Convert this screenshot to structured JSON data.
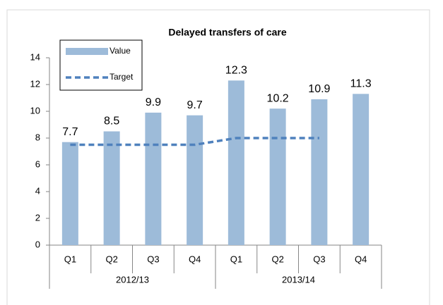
{
  "chart_data": {
    "type": "bar",
    "title": "Delayed transfers of care",
    "categories": [
      "Q1",
      "Q2",
      "Q3",
      "Q4",
      "Q1",
      "Q2",
      "Q3",
      "Q4"
    ],
    "groups": [
      {
        "name": "2012/13",
        "count": 4
      },
      {
        "name": "2013/14",
        "count": 4
      }
    ],
    "series": [
      {
        "name": "Value",
        "type": "bar",
        "color": "#9dbbd9",
        "values": [
          7.7,
          8.5,
          9.9,
          9.7,
          12.3,
          10.2,
          10.9,
          11.3
        ]
      },
      {
        "name": "Target",
        "type": "line",
        "color": "#4f81bd",
        "dashed": true,
        "values": [
          7.5,
          7.5,
          7.5,
          7.5,
          8,
          8,
          8,
          null
        ]
      }
    ],
    "ylim": [
      0,
      14
    ],
    "yticks": [
      0,
      2,
      4,
      6,
      8,
      10,
      12,
      14
    ],
    "grid": false,
    "legend": "upper left"
  }
}
